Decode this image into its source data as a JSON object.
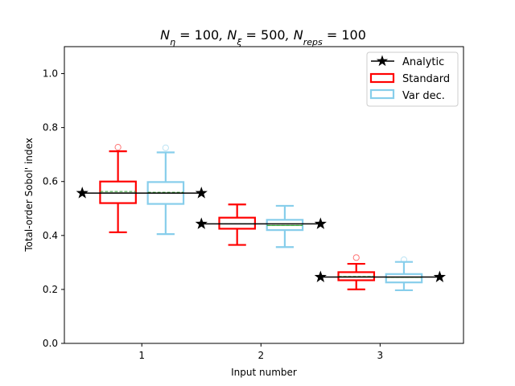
{
  "figure": {
    "title": "N_η = 100,  N_ξ = 500,  N_reps = 100"
  },
  "chart_data": {
    "type": "box",
    "title_parts": [
      {
        "var": "N",
        "sub": "η",
        "value": "100"
      },
      {
        "var": "N",
        "sub": "ξ",
        "value": "500"
      },
      {
        "var": "N",
        "sub": "reps",
        "value": "100"
      }
    ],
    "xlabel": "Input number",
    "ylabel": "Total-order Sobol' index",
    "xlim": [
      0.35,
      3.7
    ],
    "ylim": [
      0.0,
      1.1
    ],
    "x_ticks": [
      1,
      2,
      3
    ],
    "x_tick_labels": [
      "1",
      "2",
      "3"
    ],
    "y_ticks": [
      0.0,
      0.2,
      0.4,
      0.6,
      0.8,
      1.0
    ],
    "y_tick_labels": [
      "0.0",
      "0.2",
      "0.4",
      "0.6",
      "0.8",
      "1.0"
    ],
    "grid": false,
    "legend": {
      "position": "top-right",
      "entries": [
        "Analytic",
        "Standard",
        "Var dec."
      ]
    },
    "series": [
      {
        "name": "Analytic",
        "kind": "line-star",
        "color": "#000000",
        "segments": [
          {
            "x": [
              0.5,
              1.5
            ],
            "y": [
              0.557,
              0.557
            ]
          },
          {
            "x": [
              1.5,
              2.5
            ],
            "y": [
              0.443,
              0.443
            ]
          },
          {
            "x": [
              2.5,
              3.5
            ],
            "y": [
              0.246,
              0.246
            ]
          }
        ]
      },
      {
        "name": "Standard",
        "kind": "box",
        "color": "#ff0000",
        "boxes": [
          {
            "x": 0.8,
            "whisker_low": 0.412,
            "q1": 0.52,
            "median": 0.558,
            "mean": 0.563,
            "q3": 0.6,
            "whisker_high": 0.712,
            "fliers": [
              0.727
            ]
          },
          {
            "x": 1.8,
            "whisker_low": 0.365,
            "q1": 0.425,
            "median": 0.443,
            "mean": 0.443,
            "q3": 0.466,
            "whisker_high": 0.515,
            "fliers": []
          },
          {
            "x": 2.8,
            "whisker_low": 0.2,
            "q1": 0.234,
            "median": 0.247,
            "mean": 0.248,
            "q3": 0.264,
            "whisker_high": 0.295,
            "fliers": [
              0.318
            ]
          }
        ]
      },
      {
        "name": "Var dec.",
        "kind": "box",
        "color": "#87ceeb",
        "boxes": [
          {
            "x": 1.2,
            "whisker_low": 0.405,
            "q1": 0.517,
            "median": 0.557,
            "mean": 0.56,
            "q3": 0.598,
            "whisker_high": 0.708,
            "fliers": [
              0.725
            ]
          },
          {
            "x": 2.2,
            "whisker_low": 0.357,
            "q1": 0.42,
            "median": 0.437,
            "mean": 0.437,
            "q3": 0.458,
            "whisker_high": 0.51,
            "fliers": []
          },
          {
            "x": 3.2,
            "whisker_low": 0.197,
            "q1": 0.226,
            "median": 0.245,
            "mean": 0.245,
            "q3": 0.257,
            "whisker_high": 0.302,
            "fliers": [
              0.31
            ]
          }
        ]
      }
    ],
    "mean_line_color": "#2ca02c",
    "median_line_color": "#2ca02c"
  }
}
